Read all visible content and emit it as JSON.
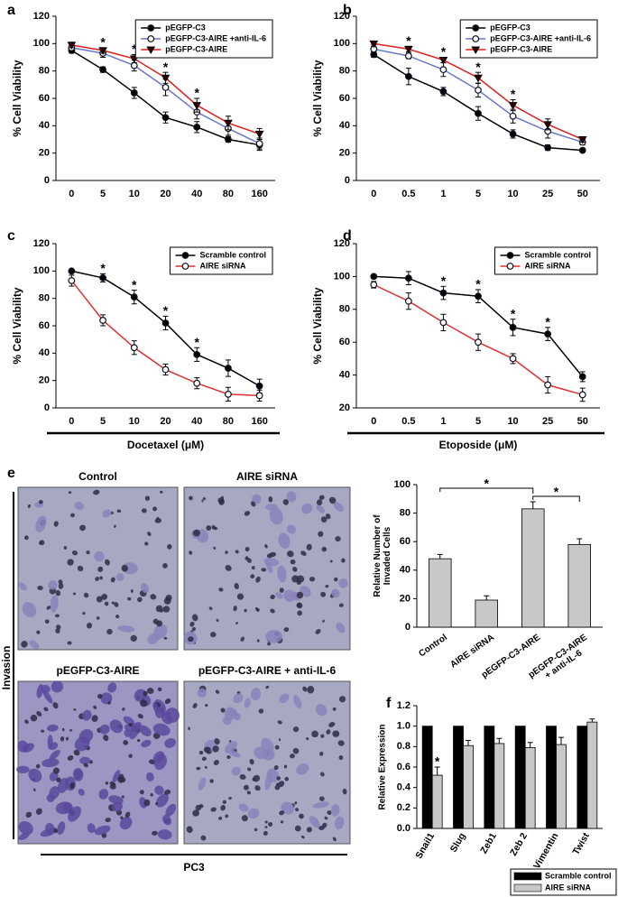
{
  "panel_labels": [
    "a",
    "b",
    "c",
    "d",
    "e",
    "f"
  ],
  "images": {
    "captions": [
      "Control",
      "AIRE siRNA",
      "pEGFP-C3-AIRE",
      "pEGFP-C3-AIRE + anti-IL-6"
    ],
    "row_label": "Invasion",
    "cell_line": "PC3"
  },
  "chart_data": [
    {
      "type": "line",
      "ylabel": "% Cell Viability",
      "categories": [
        "0",
        "5",
        "10",
        "20",
        "40",
        "80",
        "160"
      ],
      "ylim": [
        0,
        120
      ],
      "yticks": [
        0,
        20,
        40,
        60,
        80,
        100,
        120
      ],
      "legend": "upper right",
      "series": [
        {
          "name": "pEGFP-C3",
          "color": "#000000",
          "marker": "circle-filled",
          "values": [
            95,
            81,
            64,
            46,
            39,
            30,
            26
          ],
          "errors": [
            2,
            2,
            4,
            4,
            4,
            2,
            4
          ]
        },
        {
          "name": "pEGFP-C3-AIRE +anti-IL-6",
          "color": "#6a78c8",
          "marker": "circle-open",
          "values": [
            97,
            93,
            84,
            68,
            50,
            38,
            27
          ],
          "errors": [
            2,
            3,
            4,
            6,
            5,
            5,
            4
          ]
        },
        {
          "name": "pEGFP-C3-AIRE",
          "color": "#e02020",
          "marker": "triangle-down",
          "values": [
            99,
            95,
            89,
            75,
            55,
            42,
            34
          ],
          "errors": [
            2,
            2,
            3,
            4,
            5,
            5,
            4
          ]
        }
      ],
      "annotations": [
        null,
        "*",
        "*",
        "*",
        "*",
        null,
        null
      ]
    },
    {
      "type": "line",
      "ylabel": "% Cell Viability",
      "categories": [
        "0",
        "0.5",
        "1",
        "5",
        "10",
        "25",
        "50"
      ],
      "ylim": [
        0,
        120
      ],
      "yticks": [
        0,
        20,
        40,
        60,
        80,
        100,
        120
      ],
      "legend": "upper right",
      "series": [
        {
          "name": "pEGFP-C3",
          "color": "#000000",
          "marker": "circle-filled",
          "values": [
            92,
            76,
            65,
            49,
            34,
            24,
            22
          ],
          "errors": [
            2,
            6,
            3,
            5,
            3,
            2,
            1
          ]
        },
        {
          "name": "pEGFP-C3-AIRE +anti-IL-6",
          "color": "#6a78c8",
          "marker": "circle-open",
          "values": [
            96,
            91,
            81,
            66,
            47,
            36,
            28
          ],
          "errors": [
            2,
            2,
            5,
            5,
            5,
            5,
            2
          ]
        },
        {
          "name": "pEGFP-C3-AIRE",
          "color": "#e02020",
          "marker": "triangle-down",
          "values": [
            100,
            96,
            88,
            75,
            55,
            41,
            30
          ],
          "errors": [
            1,
            2,
            2,
            4,
            4,
            4,
            2
          ]
        }
      ],
      "annotations": [
        null,
        "*",
        "*",
        "*",
        "*",
        null,
        null
      ]
    },
    {
      "type": "line",
      "ylabel": "% Cell Viability",
      "xlabel": "Docetaxel (μM)",
      "categories": [
        "0",
        "5",
        "10",
        "20",
        "40",
        "80",
        "160"
      ],
      "ylim": [
        0,
        120
      ],
      "yticks": [
        0,
        20,
        40,
        60,
        80,
        100,
        120
      ],
      "legend": "upper right",
      "series": [
        {
          "name": "Scramble control",
          "color": "#000000",
          "marker": "circle-filled",
          "values": [
            100,
            95,
            81,
            62,
            39,
            29,
            16
          ],
          "errors": [
            1,
            3,
            5,
            5,
            5,
            6,
            5
          ]
        },
        {
          "name": "AIRE siRNA",
          "color": "#e03030",
          "marker": "circle-open",
          "values": [
            93,
            64,
            44,
            28,
            18,
            10,
            9
          ],
          "errors": [
            4,
            4,
            5,
            4,
            4,
            5,
            4
          ]
        }
      ],
      "annotations": [
        null,
        "*",
        "*",
        "*",
        "*",
        null,
        null
      ]
    },
    {
      "type": "line",
      "ylabel": "% Cell Viability",
      "xlabel": "Etoposide (μM)",
      "categories": [
        "0",
        "0.5",
        "1",
        "5",
        "10",
        "25",
        "50"
      ],
      "ylim": [
        20,
        120
      ],
      "yticks": [
        20,
        40,
        60,
        80,
        100,
        120
      ],
      "legend": "upper right",
      "series": [
        {
          "name": "Scramble control",
          "color": "#000000",
          "marker": "circle-filled",
          "values": [
            100,
            99,
            90,
            88,
            69,
            65,
            39
          ],
          "errors": [
            1,
            4,
            4,
            4,
            5,
            4,
            3
          ]
        },
        {
          "name": "AIRE siRNA",
          "color": "#e03030",
          "marker": "circle-open",
          "values": [
            95,
            85,
            72,
            60,
            50,
            34,
            28
          ],
          "errors": [
            2,
            5,
            5,
            5,
            3,
            5,
            4
          ]
        }
      ],
      "annotations": [
        null,
        null,
        "*",
        "*",
        "*",
        "*",
        null
      ]
    },
    {
      "type": "bar",
      "ylabel": "Relative Number of\nInvaded Cells",
      "categories": [
        "Control",
        "AIRE siRNA",
        "pEGFP-C3-AIRE",
        "pEGFP-C3-AIRE\n+ anti-IL-6"
      ],
      "values": [
        48,
        19,
        83,
        58
      ],
      "errors": [
        3,
        3,
        5,
        4
      ],
      "color": "#c8c8c8",
      "ylim": [
        0,
        100
      ],
      "yticks": [
        0,
        20,
        40,
        60,
        80,
        100
      ],
      "brackets": [
        {
          "between": [
            "Control",
            "pEGFP-C3-AIRE"
          ],
          "label": "*"
        },
        {
          "between": [
            "pEGFP-C3-AIRE",
            "pEGFP-C3-AIRE\n+ anti-IL-6"
          ],
          "label": "*"
        }
      ]
    },
    {
      "type": "bar",
      "ylabel": "Relative Expression",
      "categories": [
        "Snail1",
        "Slug",
        "Zeb1",
        "Zeb 2",
        "Vimentin",
        "Twist"
      ],
      "ylim": [
        0,
        1.2
      ],
      "yticks": [
        {
          "value": 0,
          "label": "0.0"
        },
        0.2,
        0.4,
        0.6,
        0.8,
        {
          "value": 1,
          "label": "1.0"
        },
        1.2
      ],
      "legend": "bottom",
      "series": [
        {
          "name": "Scramble control",
          "color": "#000000",
          "values": [
            1,
            1,
            1,
            1,
            1,
            1
          ]
        },
        {
          "name": "AIRE siRNA",
          "color": "#c8c8c8",
          "values": [
            0.52,
            0.81,
            0.83,
            0.79,
            0.82,
            1.04
          ],
          "errors": [
            0.08,
            0.05,
            0.05,
            0.05,
            0.07,
            0.03
          ]
        }
      ],
      "annotations": [
        "*",
        null,
        null,
        null,
        null,
        null
      ]
    }
  ]
}
